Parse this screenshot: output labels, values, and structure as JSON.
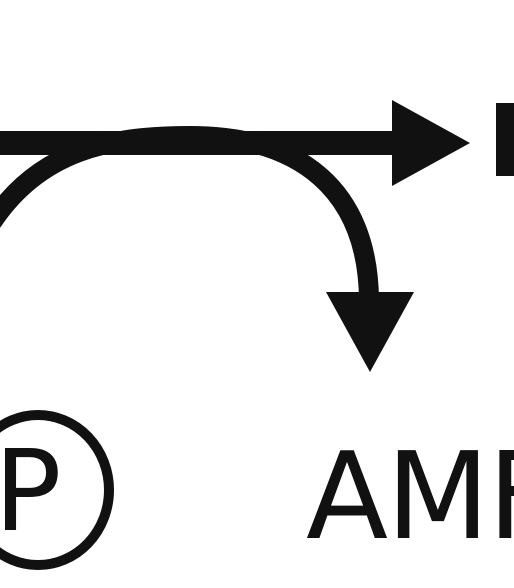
{
  "diagram": {
    "amp_label": "AMF",
    "oval_letter": "P",
    "line_color": "#111111",
    "background": "#ffffff"
  }
}
